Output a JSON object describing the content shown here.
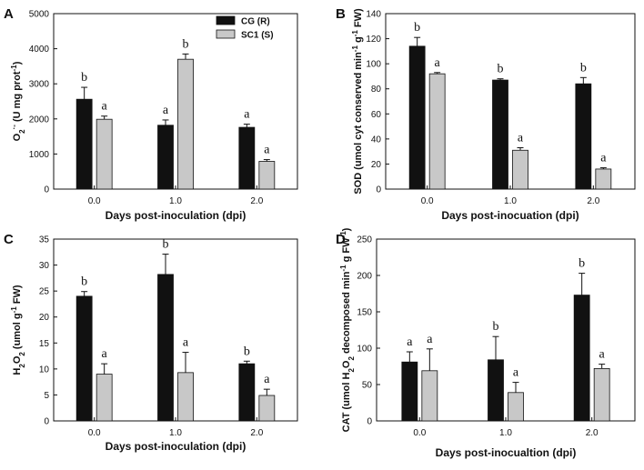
{
  "legend": {
    "series": [
      {
        "name": "CG (R)",
        "color": "#111111"
      },
      {
        "name": "SC1 (S)",
        "color": "#c8c8c8"
      }
    ]
  },
  "chart_data": [
    {
      "panel": "A",
      "type": "bar",
      "categories": [
        "0.0",
        "1.0",
        "2.0"
      ],
      "series": [
        {
          "name": "CG (R)",
          "values": [
            2560,
            1820,
            1760
          ],
          "errors": [
            340,
            150,
            90
          ],
          "letters": [
            "b",
            "a",
            "a"
          ]
        },
        {
          "name": "SC1 (S)",
          "values": [
            1990,
            3700,
            790
          ],
          "errors": [
            90,
            150,
            50
          ],
          "letters": [
            "a",
            "b",
            "a"
          ]
        }
      ],
      "ylim": [
        0,
        5000
      ],
      "yticks": [
        0,
        1000,
        2000,
        3000,
        4000,
        5000
      ],
      "xlabel": "Days post-inoculation (dpi)",
      "ylabel": "O2·- (U mg prot-1)",
      "ylabel_parts": [
        {
          "t": "O",
          "s": "n"
        },
        {
          "t": "2",
          "s": "sub"
        },
        {
          "t": "·-",
          "s": "sup"
        },
        {
          "t": " (U mg prot",
          "s": "n"
        },
        {
          "t": "-1",
          "s": "sup"
        },
        {
          "t": ")",
          "s": "n"
        }
      ]
    },
    {
      "panel": "B",
      "type": "bar",
      "categories": [
        "0.0",
        "1.0",
        "2.0"
      ],
      "series": [
        {
          "name": "CG (R)",
          "values": [
            114,
            87,
            84
          ],
          "errors": [
            7,
            1,
            5
          ],
          "letters": [
            "b",
            "b",
            "b"
          ]
        },
        {
          "name": "SC1 (S)",
          "values": [
            92,
            31,
            16
          ],
          "errors": [
            1,
            2,
            1
          ],
          "letters": [
            "a",
            "a",
            "a"
          ]
        }
      ],
      "ylim": [
        0,
        140
      ],
      "yticks": [
        0,
        20,
        40,
        60,
        80,
        100,
        120,
        140
      ],
      "xlabel": "Days post-inocuation (dpi)",
      "ylabel": "SOD (umol cyt conserved min-1 g-1 FW)",
      "ylabel_parts": [
        {
          "t": "SOD (umol cyt conserved min",
          "s": "n"
        },
        {
          "t": "-1",
          "s": "sup"
        },
        {
          "t": " g",
          "s": "n"
        },
        {
          "t": "-1",
          "s": "sup"
        },
        {
          "t": " FW)",
          "s": "n"
        }
      ]
    },
    {
      "panel": "C",
      "type": "bar",
      "categories": [
        "0.0",
        "1.0",
        "2.0"
      ],
      "series": [
        {
          "name": "CG (R)",
          "values": [
            24,
            28.2,
            11
          ],
          "errors": [
            0.9,
            3.9,
            0.5
          ],
          "letters": [
            "b",
            "b",
            "b"
          ]
        },
        {
          "name": "SC1 (S)",
          "values": [
            9,
            9.3,
            4.9
          ],
          "errors": [
            2,
            3.9,
            1.2
          ],
          "letters": [
            "a",
            "a",
            "a"
          ]
        }
      ],
      "ylim": [
        0,
        35
      ],
      "yticks": [
        0,
        5,
        10,
        15,
        20,
        25,
        30,
        35
      ],
      "xlabel": "Days post-inoculation (dpi)",
      "ylabel": "H2O2 (umol g-1 FW)",
      "ylabel_parts": [
        {
          "t": "H",
          "s": "n"
        },
        {
          "t": "2",
          "s": "sub"
        },
        {
          "t": "O",
          "s": "n"
        },
        {
          "t": "2",
          "s": "sub"
        },
        {
          "t": " (umol g",
          "s": "n"
        },
        {
          "t": "-1",
          "s": "sup"
        },
        {
          "t": " FW)",
          "s": "n"
        }
      ]
    },
    {
      "panel": "D",
      "type": "bar",
      "categories": [
        "0.0",
        "1.0",
        "2.0"
      ],
      "series": [
        {
          "name": "CG (R)",
          "values": [
            81,
            84,
            173
          ],
          "errors": [
            14,
            32,
            30
          ],
          "letters": [
            "a",
            "b",
            "b"
          ]
        },
        {
          "name": "SC1 (S)",
          "values": [
            69,
            39,
            72
          ],
          "errors": [
            30,
            14,
            6
          ],
          "letters": [
            "a",
            "a",
            "a"
          ]
        }
      ],
      "ylim": [
        0,
        250
      ],
      "yticks": [
        0,
        50,
        100,
        150,
        200,
        250
      ],
      "xlabel": "Days post-inocualtion (dpi)",
      "ylabel": "CAT (umol H2O2 decomposed min-1 g FW-1)",
      "ylabel_parts": [
        {
          "t": "CAT (umol H",
          "s": "n"
        },
        {
          "t": "2",
          "s": "sub"
        },
        {
          "t": "O",
          "s": "n"
        },
        {
          "t": "2",
          "s": "sub"
        },
        {
          "t": " decomposed min",
          "s": "n"
        },
        {
          "t": "-1",
          "s": "sup"
        },
        {
          "t": " g FW",
          "s": "n"
        },
        {
          "t": "-1",
          "s": "sup"
        },
        {
          "t": ")",
          "s": "n"
        }
      ]
    }
  ]
}
